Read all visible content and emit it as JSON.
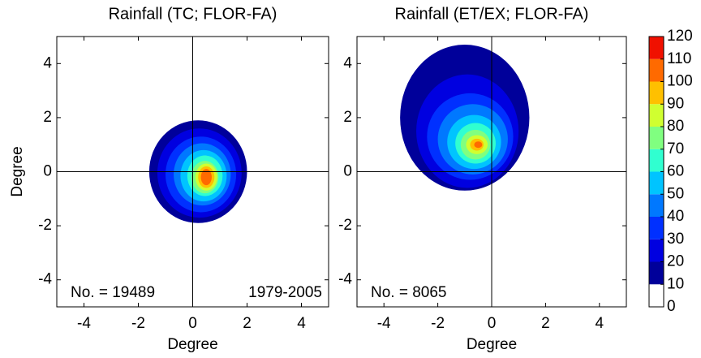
{
  "chart_data": [
    {
      "type": "contour",
      "title": "Rainfall (TC; FLOR-FA)",
      "xlabel": "Degree",
      "ylabel": "Degree",
      "xlim": [
        -5,
        5
      ],
      "ylim": [
        -5,
        5
      ],
      "xticks": [
        -4,
        -2,
        0,
        2,
        4
      ],
      "yticks": [
        -4,
        -2,
        0,
        2,
        4
      ],
      "annotations": [
        "No. = 19489",
        "1979-2005"
      ],
      "contours": [
        {
          "level": 10,
          "cx": 0.2,
          "cy": 0,
          "rx": 1.8,
          "ry": 1.9
        },
        {
          "level": 20,
          "cx": 0.25,
          "cy": -0.05,
          "rx": 1.55,
          "ry": 1.65
        },
        {
          "level": 30,
          "cx": 0.3,
          "cy": -0.1,
          "rx": 1.3,
          "ry": 1.4
        },
        {
          "level": 40,
          "cx": 0.35,
          "cy": -0.1,
          "rx": 1.05,
          "ry": 1.15
        },
        {
          "level": 50,
          "cx": 0.4,
          "cy": -0.15,
          "rx": 0.85,
          "ry": 0.95
        },
        {
          "level": 60,
          "cx": 0.45,
          "cy": -0.15,
          "rx": 0.65,
          "ry": 0.75
        },
        {
          "level": 70,
          "cx": 0.45,
          "cy": -0.2,
          "rx": 0.5,
          "ry": 0.6
        },
        {
          "level": 80,
          "cx": 0.5,
          "cy": -0.2,
          "rx": 0.4,
          "ry": 0.5
        },
        {
          "level": 90,
          "cx": 0.5,
          "cy": -0.2,
          "rx": 0.3,
          "ry": 0.4
        },
        {
          "level": 100,
          "cx": 0.5,
          "cy": -0.2,
          "rx": 0.2,
          "ry": 0.3
        }
      ]
    },
    {
      "type": "contour",
      "title": "Rainfall (ET/EX; FLOR-FA)",
      "xlabel": "Degree",
      "xlim": [
        -5,
        5
      ],
      "ylim": [
        -5,
        5
      ],
      "xticks": [
        -4,
        -2,
        0,
        2,
        4
      ],
      "yticks": [
        -4,
        -2,
        0,
        2,
        4
      ],
      "annotations": [
        "No. = 8065"
      ],
      "contours": [
        {
          "level": 10,
          "cx": -1.0,
          "cy": 2.0,
          "rx": 2.4,
          "ry": 2.7
        },
        {
          "level": 20,
          "cx": -0.9,
          "cy": 1.5,
          "rx": 1.9,
          "ry": 2.1
        },
        {
          "level": 30,
          "cx": -0.8,
          "cy": 1.3,
          "rx": 1.6,
          "ry": 1.6
        },
        {
          "level": 40,
          "cx": -0.7,
          "cy": 1.2,
          "rx": 1.3,
          "ry": 1.3
        },
        {
          "level": 50,
          "cx": -0.65,
          "cy": 1.1,
          "rx": 1.0,
          "ry": 1.0
        },
        {
          "level": 60,
          "cx": -0.6,
          "cy": 1.05,
          "rx": 0.75,
          "ry": 0.75
        },
        {
          "level": 70,
          "cx": -0.6,
          "cy": 1.0,
          "rx": 0.55,
          "ry": 0.55
        },
        {
          "level": 80,
          "cx": -0.55,
          "cy": 1.0,
          "rx": 0.4,
          "ry": 0.35
        },
        {
          "level": 90,
          "cx": -0.55,
          "cy": 1.0,
          "rx": 0.25,
          "ry": 0.22
        },
        {
          "level": 100,
          "cx": -0.5,
          "cy": 1.0,
          "rx": 0.15,
          "ry": 0.12
        }
      ],
      "colorbar": {
        "ticks": [
          0,
          10,
          20,
          30,
          40,
          50,
          60,
          70,
          80,
          90,
          100,
          110,
          120
        ],
        "colors": [
          "#ffffff",
          "#00009a",
          "#0000e0",
          "#0030ff",
          "#0078ff",
          "#00c4ff",
          "#30ffd0",
          "#80ff80",
          "#d0ff30",
          "#ffc000",
          "#ff6a00",
          "#f01000"
        ]
      }
    }
  ]
}
